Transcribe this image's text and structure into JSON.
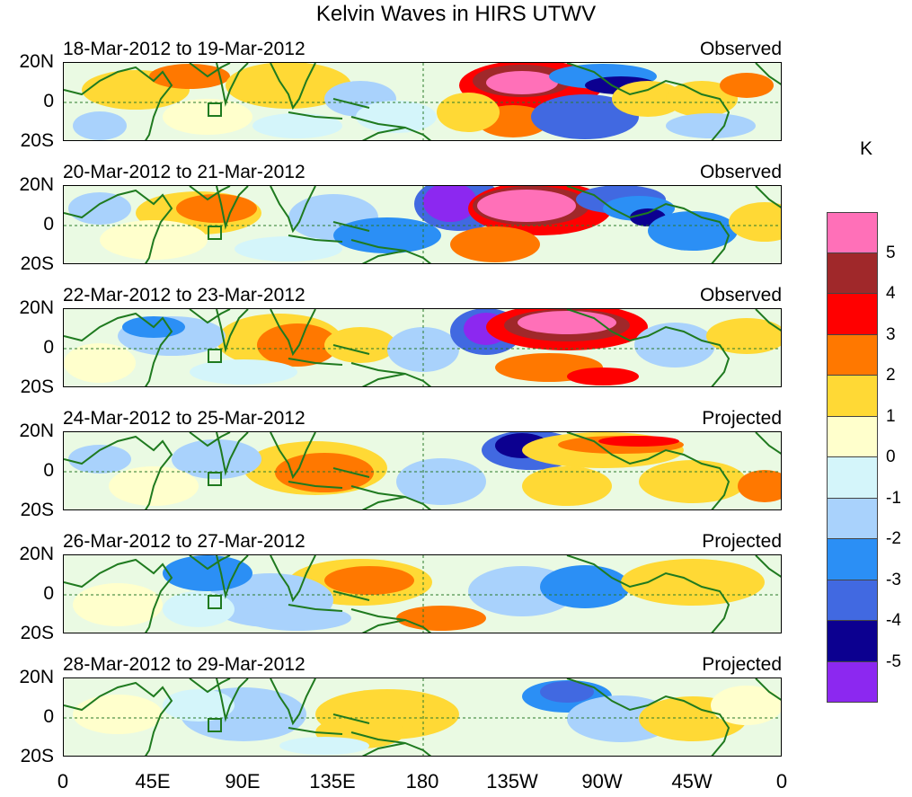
{
  "title": "Kelvin Waves in HIRS UTWV",
  "latitude_labels": [
    "20N",
    "0",
    "20S"
  ],
  "longitude_labels": [
    "0",
    "45E",
    "90E",
    "135E",
    "180",
    "135W",
    "90W",
    "45W",
    "0"
  ],
  "panels": [
    {
      "date_range": "18-Mar-2012 to 19-Mar-2012",
      "status": "Observed"
    },
    {
      "date_range": "20-Mar-2012 to 21-Mar-2012",
      "status": "Observed"
    },
    {
      "date_range": "22-Mar-2012 to 23-Mar-2012",
      "status": "Observed"
    },
    {
      "date_range": "24-Mar-2012 to 25-Mar-2012",
      "status": "Projected"
    },
    {
      "date_range": "26-Mar-2012 to 27-Mar-2012",
      "status": "Projected"
    },
    {
      "date_range": "28-Mar-2012 to 29-Mar-2012",
      "status": "Projected"
    }
  ],
  "colorbar": {
    "unit": "K",
    "labels": [
      "5",
      "4",
      "3",
      "2",
      "1",
      "0",
      "-1",
      "-2",
      "-3",
      "-4",
      "-5"
    ],
    "colors": [
      "#ff70b8",
      "#a0282a",
      "#ff0000",
      "#ff7800",
      "#ffd935",
      "#ffffcc",
      "#d4f5fa",
      "#a9d2fc",
      "#2b8ff5",
      "#4169e1",
      "#0c0090",
      "#8c28f0"
    ]
  }
}
